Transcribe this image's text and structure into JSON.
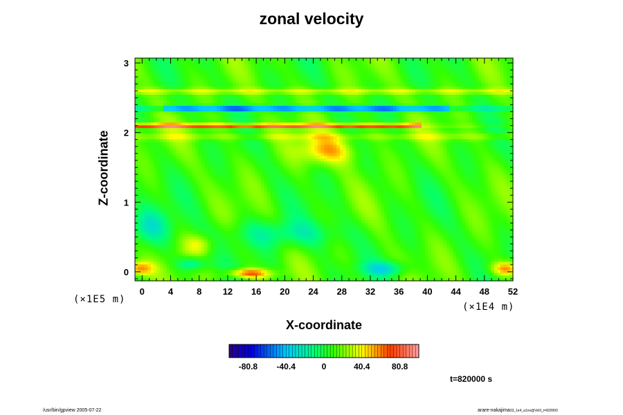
{
  "chart_data": {
    "type": "heatmap",
    "title": "zonal velocity",
    "xlabel": "X-coordinate",
    "ylabel": "Z-coordinate",
    "x_unit": "(×1E4 m)",
    "y_unit": "(×1E5 m)",
    "xlim": [
      -1,
      52
    ],
    "ylim": [
      -0.13,
      3.07
    ],
    "x_ticks": [
      "0",
      "4",
      "8",
      "12",
      "16",
      "20",
      "24",
      "28",
      "32",
      "36",
      "40",
      "44",
      "48",
      "52"
    ],
    "y_ticks": [
      "0",
      "1",
      "2",
      "3"
    ],
    "colorbar": {
      "range": [
        -101,
        101
      ],
      "ticks": [
        "-80.8",
        "-40.4",
        "0",
        "40.4",
        "80.8"
      ],
      "colormap": "rainbow"
    },
    "features": [
      {
        "description": "strong positive jet",
        "z": 2.1,
        "x_range": [
          -1,
          39
        ],
        "value": 85
      },
      {
        "description": "strong negative band",
        "z": 2.35,
        "x_range": [
          4,
          42
        ],
        "value": -70
      },
      {
        "description": "positive band",
        "z": 2.6,
        "x_range": [
          -1,
          52
        ],
        "value": 30
      },
      {
        "description": "positive plume",
        "x_range": [
          20,
          30
        ],
        "z_range": [
          1.5,
          2.0
        ],
        "value": 50
      }
    ],
    "time_label": "t=820000 s"
  },
  "footer": {
    "left": "/usr/bin/gpview 2005-07-22",
    "right": "arare-nakajima",
    "right_sub": "03_1e4_a1no@Vel3_t=820000"
  }
}
